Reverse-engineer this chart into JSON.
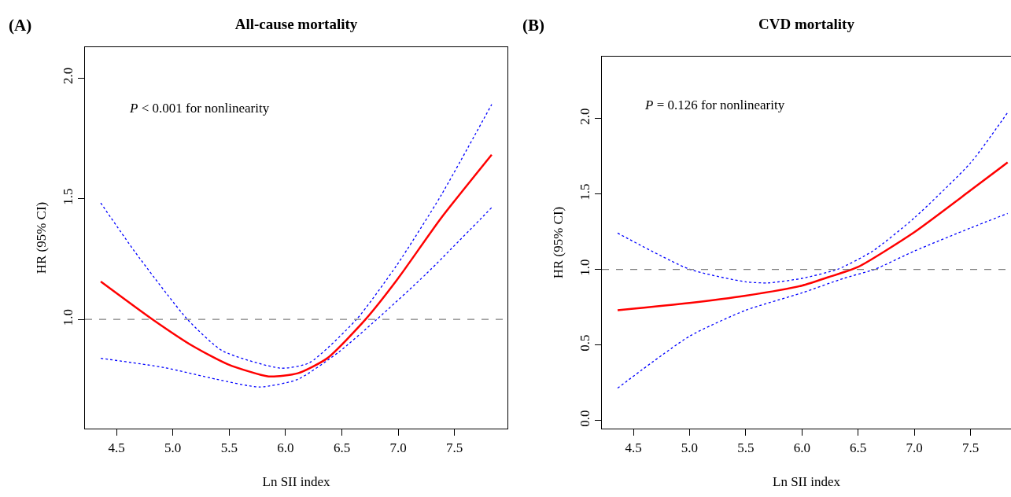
{
  "chart_data": [
    {
      "type": "line",
      "title": "All-cause mortality",
      "xlabel": "Ln SII index",
      "ylabel": "HR (95% CI)",
      "annotations": [
        "(A)",
        "P < 0.001 for nonlinearity"
      ],
      "xlim": [
        4.22,
        7.97
      ],
      "xticks": [
        {
          "value": 4.5,
          "label": "4.5"
        },
        {
          "value": 5,
          "label": "5.0"
        },
        {
          "value": 5.5,
          "label": "5.5"
        },
        {
          "value": 6,
          "label": "6.0"
        },
        {
          "value": 6.5,
          "label": "6.5"
        },
        {
          "value": 7,
          "label": "7.0"
        },
        {
          "value": 7.5,
          "label": "7.5"
        }
      ],
      "ylim": [
        0.548,
        2.127
      ],
      "yticks": [
        {
          "value": 1,
          "label": "1.0"
        },
        {
          "value": 1.5,
          "label": "1.5"
        },
        {
          "value": 2,
          "label": "2.0"
        }
      ],
      "grid": false,
      "marker": "none",
      "ref_lines": [
        {
          "axis": "y",
          "value": 1,
          "color": "#808080",
          "line_style": "dashed"
        }
      ],
      "series": [
        {
          "color": "#ff0000",
          "line_style": "solid",
          "x": [
            4.36,
            4.82,
            5.18,
            5.49,
            5.85,
            6.11,
            6.37,
            6.71,
            6.99,
            7.38,
            7.83
          ],
          "values": [
            1.157,
            1.0,
            0.889,
            0.814,
            0.764,
            0.777,
            0.839,
            1.0,
            1.164,
            1.419,
            1.682
          ]
        },
        {
          "color": "#0000ff",
          "line_style": "dotted",
          "x": [
            4.36,
            4.66,
            5.13,
            5.44,
            5.96,
            6.21,
            6.63,
            6.99,
            7.38,
            7.83
          ],
          "values": [
            1.482,
            1.282,
            1.0,
            0.87,
            0.798,
            0.82,
            1.0,
            1.226,
            1.513,
            1.89
          ]
        },
        {
          "color": "#0000ff",
          "line_style": "dotted",
          "x": [
            4.36,
            4.92,
            5.39,
            5.77,
            6.11,
            6.47,
            6.81,
            7.25,
            7.83
          ],
          "values": [
            0.839,
            0.801,
            0.752,
            0.72,
            0.752,
            0.864,
            1.0,
            1.189,
            1.463
          ]
        }
      ]
    },
    {
      "type": "line",
      "title": "CVD mortality",
      "xlabel": "Ln SII index",
      "ylabel": "HR (95% CI)",
      "annotations": [
        "(B)",
        "P = 0.126 for nonlinearity"
      ],
      "xlim": [
        4.22,
        7.86
      ],
      "xticks": [
        {
          "value": 4.5,
          "label": "4.5"
        },
        {
          "value": 5,
          "label": "5.0"
        },
        {
          "value": 5.5,
          "label": "5.5"
        },
        {
          "value": 6,
          "label": "6.0"
        },
        {
          "value": 6.5,
          "label": "6.5"
        },
        {
          "value": 7,
          "label": "7.0"
        },
        {
          "value": 7.5,
          "label": "7.5"
        }
      ],
      "ylim": [
        -0.054,
        2.41
      ],
      "yticks": [
        {
          "value": 0,
          "label": "0.0"
        },
        {
          "value": 0.5,
          "label": "0.5"
        },
        {
          "value": 1,
          "label": "1.0"
        },
        {
          "value": 1.5,
          "label": "1.5"
        },
        {
          "value": 2,
          "label": "2.0"
        }
      ],
      "grid": false,
      "marker": "none",
      "ref_lines": [
        {
          "axis": "y",
          "value": 1,
          "color": "#808080",
          "line_style": "dashed"
        }
      ],
      "series": [
        {
          "color": "#ff0000",
          "line_style": "solid",
          "x": [
            4.36,
            5.0,
            5.5,
            6.0,
            6.24,
            6.5,
            7.0,
            7.5,
            7.83
          ],
          "values": [
            0.73,
            0.778,
            0.826,
            0.893,
            0.95,
            1.017,
            1.247,
            1.524,
            1.709
          ]
        },
        {
          "color": "#0000ff",
          "line_style": "dotted",
          "x": [
            4.36,
            5.0,
            5.5,
            5.7,
            6.0,
            6.32,
            6.63,
            7.0,
            7.5,
            7.83
          ],
          "values": [
            1.241,
            1.002,
            0.918,
            0.911,
            0.941,
            1.002,
            1.122,
            1.342,
            1.706,
            2.04
          ]
        },
        {
          "color": "#0000ff",
          "line_style": "dotted",
          "x": [
            4.36,
            5.0,
            5.5,
            6.0,
            6.37,
            6.65,
            7.0,
            7.5,
            7.83
          ],
          "values": [
            0.214,
            0.558,
            0.73,
            0.845,
            0.941,
            1.002,
            1.122,
            1.275,
            1.371
          ]
        }
      ]
    }
  ]
}
